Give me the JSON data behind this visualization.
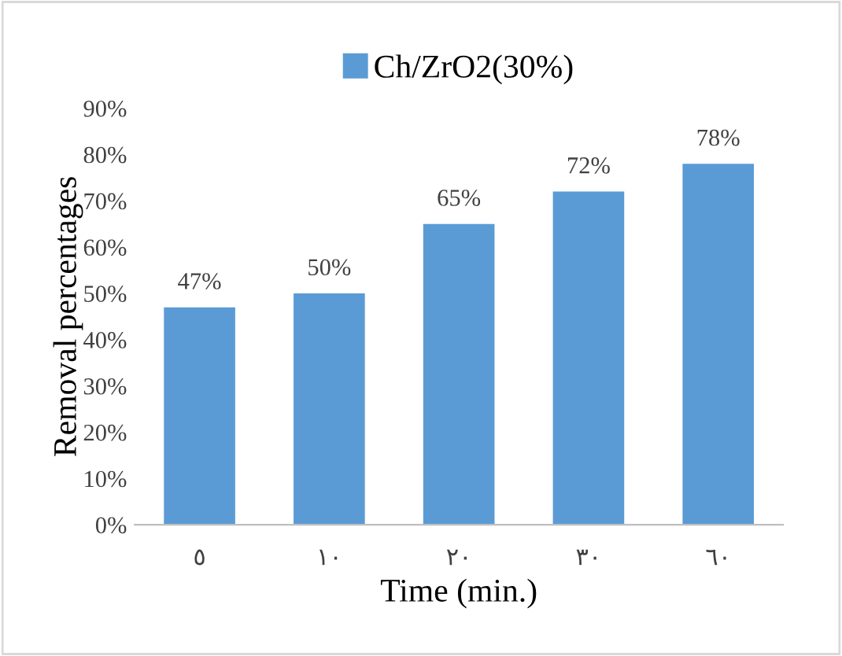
{
  "chart_data": {
    "type": "bar",
    "xlabel": "Time (min.)",
    "ylabel": "Removal percentages",
    "categories": [
      "٥",
      "١٠",
      "٢٠",
      "٣٠",
      "٦٠"
    ],
    "series": [
      {
        "name": "Ch/ZrO2(30%)",
        "color": "#5b9bd5",
        "values": [
          47,
          50,
          65,
          72,
          78
        ]
      }
    ],
    "value_labels": [
      "47%",
      "50%",
      "65%",
      "72%",
      "78%"
    ],
    "ylim": [
      0,
      90
    ],
    "yticks": [
      {
        "value": 0,
        "label": "0%"
      },
      {
        "value": 10,
        "label": "10%"
      },
      {
        "value": 20,
        "label": "20%"
      },
      {
        "value": 30,
        "label": "30%"
      },
      {
        "value": 40,
        "label": "40%"
      },
      {
        "value": 50,
        "label": "50%"
      },
      {
        "value": 60,
        "label": "60%"
      },
      {
        "value": 70,
        "label": "70%"
      },
      {
        "value": 80,
        "label": "80%"
      },
      {
        "value": 90,
        "label": "90%"
      }
    ],
    "grid": false,
    "legend": "top"
  }
}
